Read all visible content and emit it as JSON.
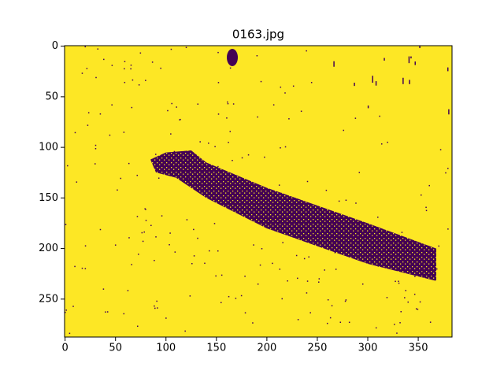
{
  "chart_data": {
    "type": "image",
    "title": "0163.jpg",
    "xlim": [
      -0.5,
      383.5
    ],
    "ylim": [
      287.5,
      -0.5
    ],
    "xticks": [
      0,
      50,
      100,
      150,
      200,
      250,
      300,
      350
    ],
    "yticks": [
      0,
      50,
      100,
      150,
      200,
      250
    ],
    "colors": [
      "#440154",
      "#fde725"
    ]
  }
}
